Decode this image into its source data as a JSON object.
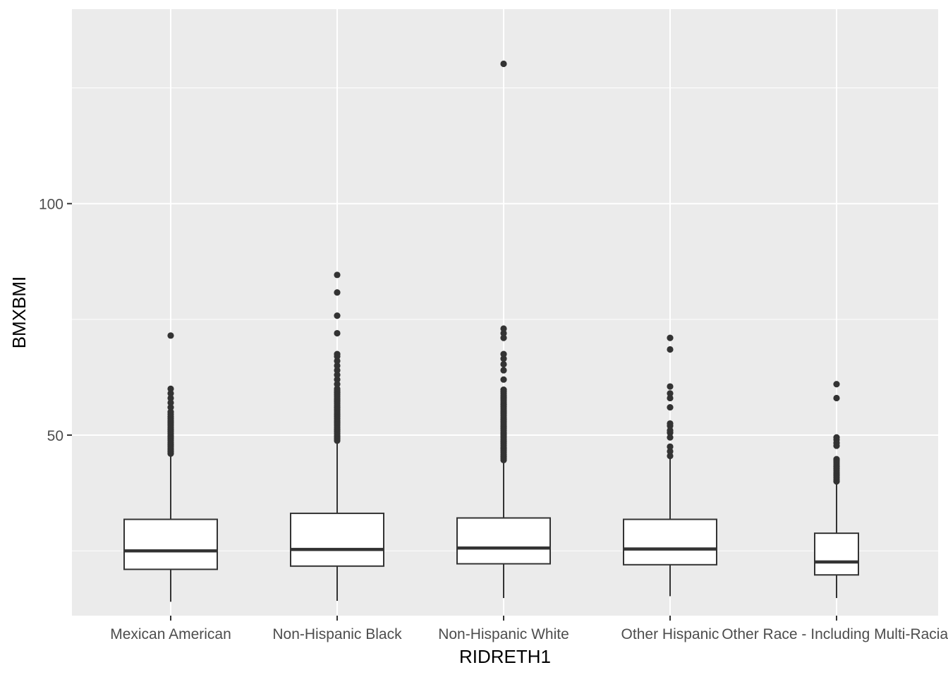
{
  "chart_data": {
    "type": "box",
    "xlabel": "RIDRETH1",
    "ylabel": "BMXBMI",
    "ylim": [
      11,
      142
    ],
    "yticks": [
      50,
      100
    ],
    "ytick_labels": [
      "50",
      "100"
    ],
    "grid": true,
    "legend": "none",
    "colors": {
      "panel": "#ebebeb",
      "grid": "#ffffff",
      "box_fill": "#ffffff",
      "box_line": "#333333",
      "tick_text": "#4d4d4d"
    },
    "categories": [
      "Mexican American",
      "Non-Hispanic Black",
      "Non-Hispanic White",
      "Other Hispanic",
      "Other Race - Including Multi-Racial"
    ],
    "boxes": [
      {
        "category": "Mexican American",
        "whisker_low": 14.0,
        "q1": 21.0,
        "median": 25.0,
        "q3": 31.8,
        "whisker_high": 45.8,
        "outliers": [
          46.0,
          46.4,
          46.8,
          47.2,
          47.6,
          48.0,
          48.4,
          48.8,
          49.2,
          49.6,
          50.0,
          50.4,
          50.8,
          51.2,
          51.6,
          52.0,
          52.4,
          52.8,
          53.2,
          53.6,
          54.0,
          54.5,
          55.0,
          56.0,
          57.0,
          58.0,
          59.0,
          60.0,
          71.5
        ]
      },
      {
        "category": "Non-Hispanic Black",
        "whisker_low": 14.2,
        "q1": 21.7,
        "median": 25.3,
        "q3": 33.1,
        "whisker_high": 48.6,
        "outliers": [
          48.8,
          49.2,
          49.6,
          50.0,
          50.4,
          50.8,
          51.2,
          51.6,
          52.0,
          52.4,
          52.8,
          53.2,
          53.6,
          54.0,
          54.4,
          54.8,
          55.2,
          55.6,
          56.0,
          56.4,
          56.8,
          57.2,
          57.6,
          58.0,
          58.4,
          58.8,
          59.2,
          59.6,
          60.0,
          61.0,
          62.0,
          63.0,
          64.0,
          65.0,
          66.0,
          67.0,
          67.5,
          72.0,
          75.8,
          80.8,
          84.6
        ]
      },
      {
        "category": "Non-Hispanic White",
        "whisker_low": 14.8,
        "q1": 22.2,
        "median": 25.6,
        "q3": 32.1,
        "whisker_high": 44.5,
        "outliers": [
          44.6,
          45.0,
          45.4,
          45.8,
          46.2,
          46.6,
          47.0,
          47.4,
          47.8,
          48.2,
          48.6,
          49.0,
          49.4,
          49.8,
          50.2,
          50.6,
          51.0,
          51.4,
          51.8,
          52.2,
          52.6,
          53.0,
          53.4,
          53.8,
          54.2,
          54.6,
          55.0,
          55.4,
          55.8,
          56.2,
          56.6,
          57.0,
          57.4,
          57.8,
          58.2,
          58.6,
          59.0,
          59.4,
          59.8,
          62.0,
          64.0,
          65.3,
          66.5,
          67.5,
          71.0,
          72.0,
          73.0,
          130.2
        ]
      },
      {
        "category": "Other Hispanic",
        "whisker_low": 15.2,
        "q1": 22.0,
        "median": 25.4,
        "q3": 31.8,
        "whisker_high": 45.2,
        "outliers": [
          45.5,
          46.5,
          47.5,
          49.5,
          50.5,
          51.0,
          52.0,
          52.5,
          56.0,
          58.0,
          59.0,
          60.5,
          68.5,
          71.0
        ]
      },
      {
        "category": "Other Race - Including Multi-Racial",
        "whisker_low": 14.8,
        "q1": 19.8,
        "median": 22.6,
        "q3": 28.8,
        "whisker_high": 39.8,
        "outliers": [
          40.0,
          40.4,
          40.8,
          41.2,
          41.6,
          42.0,
          42.4,
          42.8,
          43.2,
          43.6,
          44.0,
          44.4,
          44.8,
          47.7,
          48.3,
          49.0,
          49.5,
          58.0,
          61.0
        ]
      }
    ]
  }
}
